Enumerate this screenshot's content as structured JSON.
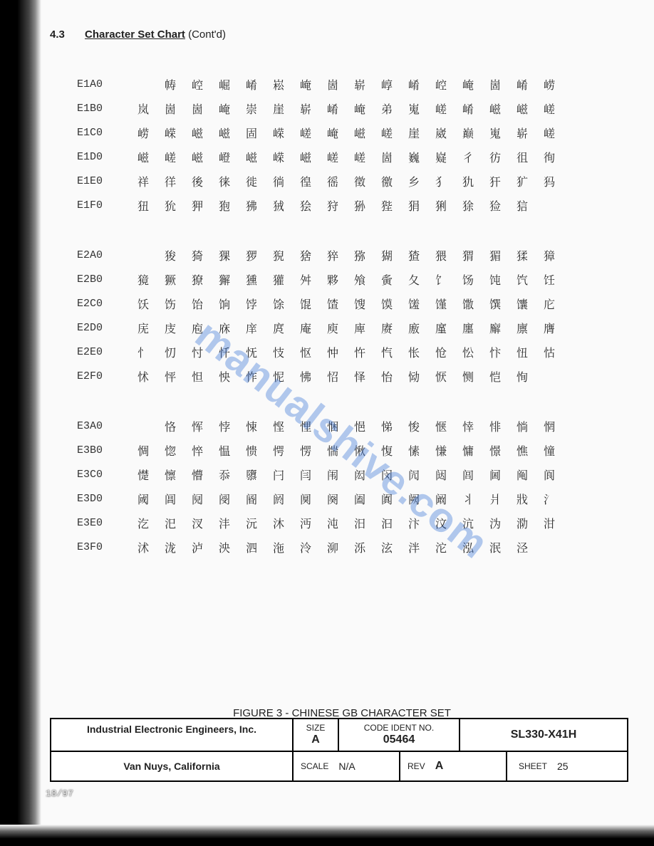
{
  "header": {
    "section_number": "4.3",
    "section_title": "Character Set Chart",
    "contd": "(Cont'd)"
  },
  "watermark": "manualshive.com",
  "figure_caption": "FIGURE 3 - CHINESE GB CHARACTER SET",
  "titleblock": {
    "company": "Industrial Electronic Engineers, Inc.",
    "location": "Van Nuys, California",
    "size_label": "SIZE",
    "size": "A",
    "code_ident_label": "CODE IDENT NO.",
    "code_ident": "05464",
    "part_number": "SL330-X41H",
    "scale_label": "SCALE",
    "scale": "N/A",
    "rev_label": "REV",
    "rev": "A",
    "sheet_label": "SHEET",
    "sheet": "25"
  },
  "date_stamp": "18/97",
  "chart": {
    "columns": 16,
    "blocks": [
      {
        "rows": [
          {
            "code": "E1A0",
            "start_blank": 1,
            "chars": [
              "帱",
              "崆",
              "崛",
              "崤",
              "崧",
              "崦",
              "崮",
              "崭",
              "崞",
              "崤",
              "崆",
              "崦",
              "崮",
              "崤",
              "崂"
            ]
          },
          {
            "code": "E1B0",
            "start_blank": 0,
            "chars": [
              "岚",
              "崮",
              "崮",
              "崦",
              "崇",
              "崖",
              "崭",
              "崤",
              "崦",
              "弟",
              "嵬",
              "嵯",
              "崤",
              "嵫",
              "嵫",
              "嵯"
            ]
          },
          {
            "code": "E1C0",
            "start_blank": 0,
            "chars": [
              "崂",
              "嵘",
              "嵫",
              "嵫",
              "固",
              "嵘",
              "嵯",
              "崦",
              "嵫",
              "嵯",
              "崖",
              "崴",
              "巅",
              "嵬",
              "崭",
              "嵯"
            ]
          },
          {
            "code": "E1D0",
            "start_blank": 0,
            "chars": [
              "嵫",
              "嵯",
              "嵫",
              "嶝",
              "嵫",
              "嵘",
              "嵫",
              "嵯",
              "嵯",
              "崮",
              "巍",
              "嶷",
              "彳",
              "彷",
              "徂",
              "徇"
            ]
          },
          {
            "code": "E1E0",
            "start_blank": 0,
            "chars": [
              "祥",
              "徉",
              "後",
              "徕",
              "徙",
              "徜",
              "徨",
              "徭",
              "徵",
              "徼",
              "乡",
              "犭",
              "犰",
              "犴",
              "犷",
              "犸"
            ]
          },
          {
            "code": "E1F0",
            "start_blank": 0,
            "chars": [
              "狃",
              "狁",
              "狎",
              "狍",
              "狒",
              "狨",
              "狯",
              "狩",
              "狲",
              "狴",
              "狷",
              "猁",
              "狳",
              "猃",
              "狺",
              ""
            ]
          }
        ]
      },
      {
        "rows": [
          {
            "code": "E2A0",
            "start_blank": 1,
            "chars": [
              "狻",
              "猗",
              "猓",
              "猡",
              "猊",
              "猞",
              "猝",
              "猕",
              "猢",
              "猹",
              "猥",
              "猬",
              "猸",
              "猱",
              "獐"
            ]
          },
          {
            "code": "E2B0",
            "start_blank": 0,
            "chars": [
              "獍",
              "獗",
              "獠",
              "獬",
              "獯",
              "獾",
              "舛",
              "夥",
              "飧",
              "夤",
              "夂",
              "饣",
              "饧",
              "饨",
              "饩",
              "饪"
            ]
          },
          {
            "code": "E2C0",
            "start_blank": 0,
            "chars": [
              "饫",
              "饬",
              "饴",
              "饷",
              "饽",
              "馀",
              "馄",
              "馇",
              "馊",
              "馍",
              "馐",
              "馑",
              "馓",
              "馔",
              "馕",
              "庀"
            ]
          },
          {
            "code": "E2D0",
            "start_blank": 0,
            "chars": [
              "庑",
              "庋",
              "庖",
              "庥",
              "庠",
              "庹",
              "庵",
              "庾",
              "庳",
              "赓",
              "廒",
              "廑",
              "廛",
              "廨",
              "廪",
              "膺"
            ]
          },
          {
            "code": "E2E0",
            "start_blank": 0,
            "chars": [
              "忄",
              "忉",
              "忖",
              "忏",
              "怃",
              "忮",
              "怄",
              "忡",
              "忤",
              "忾",
              "怅",
              "怆",
              "忪",
              "忭",
              "忸",
              "怙"
            ]
          },
          {
            "code": "E2F0",
            "start_blank": 0,
            "chars": [
              "怵",
              "怦",
              "怛",
              "怏",
              "怍",
              "怩",
              "怫",
              "怊",
              "怿",
              "怡",
              "恸",
              "恹",
              "恻",
              "恺",
              "恂",
              ""
            ]
          }
        ]
      },
      {
        "rows": [
          {
            "code": "E3A0",
            "start_blank": 1,
            "chars": [
              "恪",
              "恽",
              "悖",
              "悚",
              "悭",
              "悝",
              "悃",
              "悒",
              "悌",
              "悛",
              "惬",
              "悻",
              "悱",
              "惝",
              "惘"
            ]
          },
          {
            "code": "E3B0",
            "start_blank": 0,
            "chars": [
              "惆",
              "惚",
              "悴",
              "愠",
              "愦",
              "愕",
              "愣",
              "惴",
              "愀",
              "愎",
              "愫",
              "慊",
              "慵",
              "憬",
              "憔",
              "憧"
            ]
          },
          {
            "code": "E3C0",
            "start_blank": 0,
            "chars": [
              "憷",
              "懔",
              "懵",
              "忝",
              "隳",
              "闩",
              "闫",
              "闱",
              "闳",
              "闵",
              "闶",
              "闼",
              "闾",
              "阃",
              "阄",
              "阆"
            ]
          },
          {
            "code": "E3D0",
            "start_blank": 0,
            "chars": [
              "阈",
              "阊",
              "阋",
              "阌",
              "阍",
              "阏",
              "阒",
              "阕",
              "阖",
              "阗",
              "阙",
              "阚",
              "丬",
              "爿",
              "戕",
              "氵"
            ]
          },
          {
            "code": "E3E0",
            "start_blank": 0,
            "chars": [
              "汔",
              "汜",
              "汊",
              "沣",
              "沅",
              "沐",
              "沔",
              "沌",
              "汨",
              "汩",
              "汴",
              "汶",
              "沆",
              "沩",
              "泐",
              "泔"
            ]
          },
          {
            "code": "E3F0",
            "start_blank": 0,
            "chars": [
              "沭",
              "泷",
              "泸",
              "泱",
              "泗",
              "沲",
              "泠",
              "泖",
              "泺",
              "泫",
              "泮",
              "沱",
              "泓",
              "泯",
              "泾",
              ""
            ]
          }
        ]
      }
    ]
  }
}
